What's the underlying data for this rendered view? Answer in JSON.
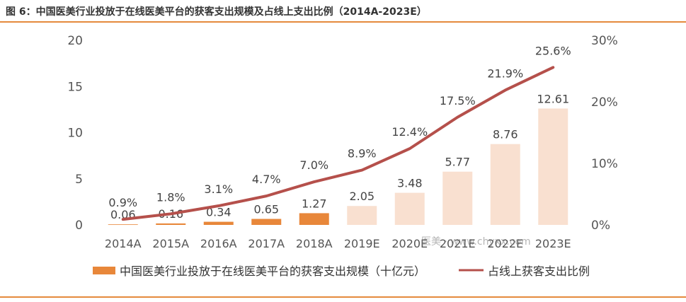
{
  "figure_title": "图 6：中国医美行业投放于在线医美平台的获客支出规模及占线上支出比例（2014A-2023E）",
  "watermark": "医美 · www.chyxx.com",
  "chart_data": {
    "type": "bar",
    "title": "",
    "categories": [
      "2014A",
      "2015A",
      "2016A",
      "2017A",
      "2018A",
      "2019E",
      "2020E",
      "2021E",
      "2022E",
      "2023E"
    ],
    "series": [
      {
        "name": "中国医美行业投放于在线医美平台的获客支出规模（十亿元）",
        "type": "bar",
        "axis": "left",
        "values": [
          0.06,
          0.16,
          0.34,
          0.65,
          1.27,
          2.05,
          3.48,
          5.77,
          8.76,
          12.61
        ],
        "labels": [
          "0.06",
          "0.16",
          "0.34",
          "0.65",
          "1.27",
          "2.05",
          "3.48",
          "5.77",
          "8.76",
          "12.61"
        ],
        "color_actual": "#e8873a",
        "color_estimate": "#f9e0d0"
      },
      {
        "name": "占线上获客支出比例",
        "type": "line",
        "axis": "right",
        "values": [
          0.9,
          1.8,
          3.1,
          4.7,
          7.0,
          8.9,
          12.4,
          17.5,
          21.9,
          25.6
        ],
        "labels": [
          "0.9%",
          "1.8%",
          "3.1%",
          "4.7%",
          "7.0%",
          "8.9%",
          "12.4%",
          "17.5%",
          "21.9%",
          "25.6%"
        ],
        "color": "#b5504b"
      }
    ],
    "y_left": {
      "range": [
        0,
        20
      ],
      "ticks": [
        "0",
        "5",
        "10",
        "15",
        "20"
      ]
    },
    "y_right": {
      "range": [
        0,
        30
      ],
      "ticks": [
        "0%",
        "10%",
        "20%",
        "30%"
      ]
    },
    "grid": false,
    "legend_position": "bottom"
  }
}
